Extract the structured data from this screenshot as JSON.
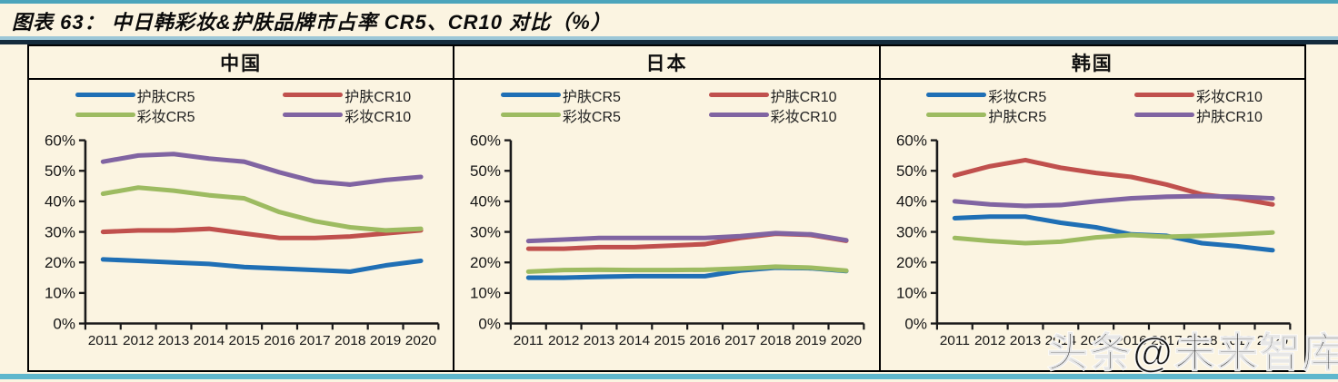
{
  "figure_title": "图表 63：  中日韩彩妆&护肤品牌市占率 CR5、CR10 对比（%）",
  "watermark": "头条@未来智库",
  "colors": {
    "accent_rule_top": "#4BA4BB",
    "accent_rule_light": "#9CC7D7",
    "accent_rule_dark": "#142B3C",
    "accent_rule_bottom": "#5FB7CD",
    "series_blue": "#1F6FB5",
    "series_red": "#C0504D",
    "series_green": "#9DBB61",
    "series_purple": "#8064A2"
  },
  "chart_data": [
    {
      "type": "line",
      "title": "中国",
      "categories": [
        "2011",
        "2012",
        "2013",
        "2014",
        "2015",
        "2016",
        "2017",
        "2018",
        "2019",
        "2020"
      ],
      "ylim": [
        0,
        60
      ],
      "ytick_step": 10,
      "yticks": [
        "0%",
        "10%",
        "20%",
        "30%",
        "40%",
        "50%",
        "60%"
      ],
      "grid": false,
      "legend_position": "top",
      "series": [
        {
          "name": "护肤CR5",
          "color": "#1F6FB5",
          "values": [
            21,
            20.5,
            20,
            19.5,
            18.5,
            18,
            17.5,
            17,
            19,
            20.5
          ]
        },
        {
          "name": "护肤CR10",
          "color": "#C0504D",
          "values": [
            30,
            30.5,
            30.5,
            31,
            29.5,
            28,
            28,
            28.5,
            29.5,
            30.5
          ]
        },
        {
          "name": "彩妆CR5",
          "color": "#9DBB61",
          "values": [
            42.5,
            44.5,
            43.5,
            42,
            41,
            36.5,
            33.5,
            31.5,
            30.5,
            31
          ]
        },
        {
          "name": "彩妆CR10",
          "color": "#8064A2",
          "values": [
            53,
            55,
            55.5,
            54,
            53,
            49.5,
            46.5,
            45.5,
            47,
            48
          ]
        }
      ]
    },
    {
      "type": "line",
      "title": "日本",
      "categories": [
        "2011",
        "2012",
        "2013",
        "2014",
        "2015",
        "2016",
        "2017",
        "2018",
        "2019",
        "2020"
      ],
      "ylim": [
        0,
        60
      ],
      "ytick_step": 10,
      "yticks": [
        "0%",
        "10%",
        "20%",
        "30%",
        "40%",
        "50%",
        "60%"
      ],
      "grid": false,
      "legend_position": "top",
      "series": [
        {
          "name": "护肤CR5",
          "color": "#1F6FB5",
          "values": [
            15,
            15,
            15.3,
            15.5,
            15.5,
            15.5,
            17.3,
            18.3,
            18.1,
            17.2
          ]
        },
        {
          "name": "护肤CR10",
          "color": "#C0504D",
          "values": [
            24.5,
            24.5,
            25,
            25,
            25.5,
            26,
            28,
            29.4,
            29,
            27.1
          ]
        },
        {
          "name": "彩妆CR5",
          "color": "#9DBB61",
          "values": [
            17,
            17.5,
            17.6,
            17.5,
            17.5,
            17.6,
            18,
            18.6,
            18.3,
            17.3
          ]
        },
        {
          "name": "彩妆CR10",
          "color": "#8064A2",
          "values": [
            27,
            27.5,
            28,
            28,
            28,
            28,
            28.6,
            29.6,
            29.2,
            27.3
          ]
        }
      ]
    },
    {
      "type": "line",
      "title": "韩国",
      "categories": [
        "2011",
        "2012",
        "2013",
        "2014",
        "2015",
        "2016",
        "2017",
        "2018",
        "2019",
        "2020"
      ],
      "ylim": [
        0,
        60
      ],
      "ytick_step": 10,
      "yticks": [
        "0%",
        "10%",
        "20%",
        "30%",
        "40%",
        "50%",
        "60%"
      ],
      "grid": false,
      "legend_position": "top",
      "series": [
        {
          "name": "彩妆CR5",
          "color": "#1F6FB5",
          "values": [
            34.5,
            35,
            35,
            33,
            31.5,
            29.2,
            28.7,
            26.3,
            25.3,
            24
          ]
        },
        {
          "name": "彩妆CR10",
          "color": "#C0504D",
          "values": [
            48.5,
            51.5,
            53.5,
            51,
            49.3,
            48,
            45.5,
            42.3,
            41,
            39
          ]
        },
        {
          "name": "护肤CR5",
          "color": "#9DBB61",
          "values": [
            28,
            27,
            26.3,
            26.8,
            28.2,
            29,
            28.4,
            28.7,
            29.2,
            29.8
          ]
        },
        {
          "name": "护肤CR10",
          "color": "#8064A2",
          "values": [
            40,
            39,
            38.5,
            38.8,
            40,
            41,
            41.5,
            41.7,
            41.5,
            41
          ]
        }
      ]
    }
  ]
}
